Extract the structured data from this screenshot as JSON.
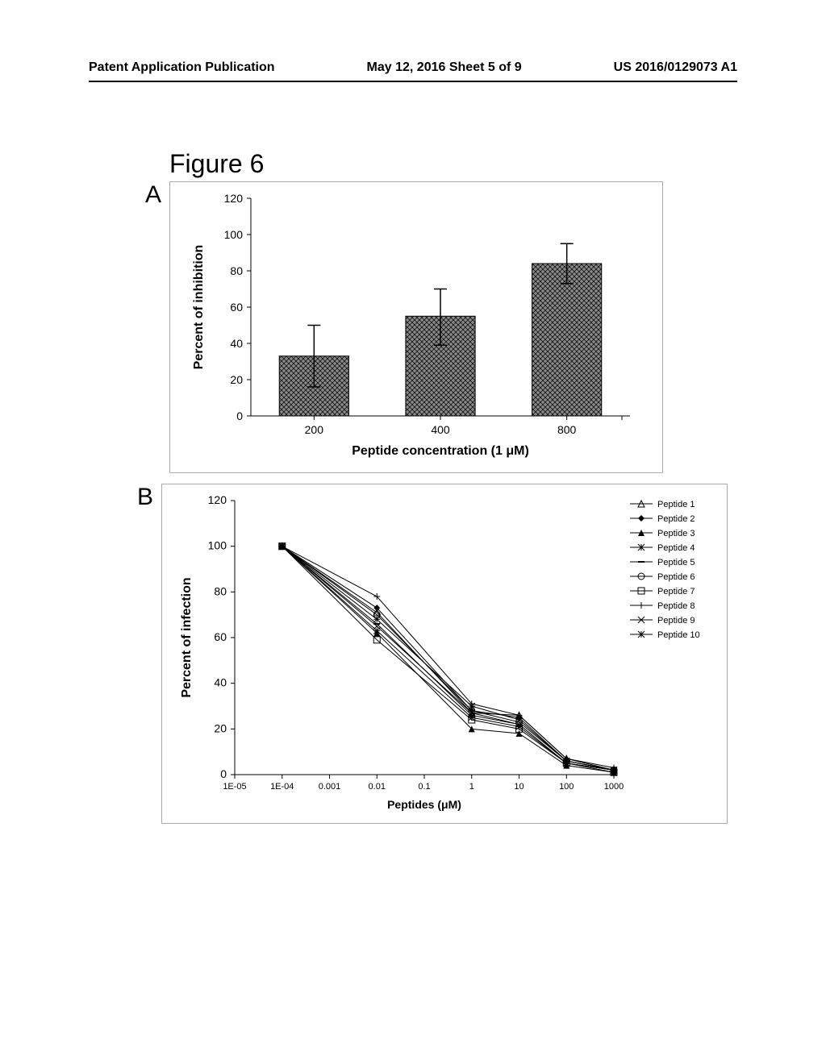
{
  "header": {
    "left": "Patent Application Publication",
    "center": "May 12, 2016  Sheet 5 of 9",
    "right": "US 2016/0129073 A1"
  },
  "figure_label": "Figure 6",
  "panel_a": {
    "label": "A",
    "type": "bar",
    "ylabel": "Percent of inhibition",
    "xlabel": "Peptide concentration (1 μM)",
    "ylim": [
      0,
      120
    ],
    "ytick_step": 20,
    "categories": [
      "200",
      "400",
      "800"
    ],
    "values": [
      33,
      55,
      84
    ],
    "err_low": [
      17,
      16,
      11
    ],
    "err_high": [
      17,
      15,
      11
    ],
    "bar_color": "#6b6b6b",
    "bar_pattern": "crosshatch",
    "background_color": "#ffffff",
    "axis_color": "#000000",
    "label_fontsize": 16,
    "tick_fontsize": 14
  },
  "panel_b": {
    "label": "B",
    "type": "line",
    "ylabel": "Percent of infection",
    "xlabel": "Peptides (μM)",
    "ylim": [
      0,
      120
    ],
    "ytick_step": 20,
    "xscale": "log",
    "xticks": [
      "1E-05",
      "1E-04",
      "0.001",
      "0.01",
      "0.1",
      "1",
      "10",
      "100",
      "1000"
    ],
    "xvals": [
      1e-05,
      0.0001,
      0.001,
      0.01,
      0.1,
      1,
      10,
      100,
      1000
    ],
    "legend": [
      {
        "label": "Peptide 1",
        "marker": "triangle-open"
      },
      {
        "label": "Peptide 2",
        "marker": "diamond"
      },
      {
        "label": "Peptide 3",
        "marker": "triangle"
      },
      {
        "label": "Peptide 4",
        "marker": "asterisk"
      },
      {
        "label": "Peptide 5",
        "marker": "dash"
      },
      {
        "label": "Peptide 6",
        "marker": "circle-open"
      },
      {
        "label": "Peptide 7",
        "marker": "square-open"
      },
      {
        "label": "Peptide 8",
        "marker": "plus"
      },
      {
        "label": "Peptide 9",
        "marker": "x"
      },
      {
        "label": "Peptide 10",
        "marker": "asterisk-bold"
      }
    ],
    "series": [
      {
        "name": "Peptide 1",
        "color": "#000000",
        "y": [
          null,
          100,
          null,
          71,
          null,
          27,
          26,
          7,
          2
        ]
      },
      {
        "name": "Peptide 2",
        "color": "#000000",
        "y": [
          null,
          100,
          null,
          73,
          null,
          28,
          25,
          6,
          2
        ]
      },
      {
        "name": "Peptide 3",
        "color": "#000000",
        "y": [
          null,
          100,
          null,
          62,
          null,
          20,
          18,
          4,
          1
        ]
      },
      {
        "name": "Peptide 4",
        "color": "#000000",
        "y": [
          null,
          100,
          null,
          68,
          null,
          30,
          24,
          6,
          2
        ]
      },
      {
        "name": "Peptide 5",
        "color": "#000000",
        "y": [
          null,
          100,
          null,
          66,
          null,
          26,
          22,
          5,
          2
        ]
      },
      {
        "name": "Peptide 6",
        "color": "#000000",
        "y": [
          null,
          100,
          null,
          70,
          null,
          28,
          23,
          6,
          2
        ]
      },
      {
        "name": "Peptide 7",
        "color": "#000000",
        "y": [
          null,
          100,
          null,
          59,
          null,
          24,
          20,
          5,
          1
        ]
      },
      {
        "name": "Peptide 8",
        "color": "#000000",
        "y": [
          null,
          100,
          null,
          78,
          null,
          31,
          26,
          7,
          3
        ]
      },
      {
        "name": "Peptide 9",
        "color": "#000000",
        "y": [
          null,
          100,
          null,
          65,
          null,
          27,
          22,
          5,
          2
        ]
      },
      {
        "name": "Peptide 10",
        "color": "#000000",
        "y": [
          null,
          100,
          null,
          63,
          null,
          25,
          21,
          5,
          2
        ]
      }
    ],
    "line_color": "#000000",
    "background_color": "#ffffff",
    "axis_color": "#000000"
  }
}
